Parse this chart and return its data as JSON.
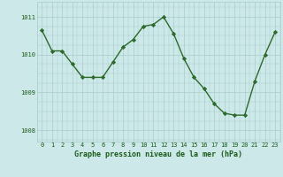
{
  "x": [
    0,
    1,
    2,
    3,
    4,
    5,
    6,
    7,
    8,
    9,
    10,
    11,
    12,
    13,
    14,
    15,
    16,
    17,
    18,
    19,
    20,
    21,
    22,
    23
  ],
  "y": [
    1010.65,
    1010.1,
    1010.1,
    1009.75,
    1009.4,
    1009.4,
    1009.4,
    1009.8,
    1010.2,
    1010.4,
    1010.75,
    1010.8,
    1011.0,
    1010.55,
    1009.9,
    1009.4,
    1009.1,
    1008.7,
    1008.45,
    1008.4,
    1008.4,
    1009.3,
    1010.0,
    1010.6
  ],
  "line_color": "#2d6a2d",
  "marker": "D",
  "marker_size": 2.2,
  "bg_color": "#cce8e8",
  "grid_color": "#aacccc",
  "xlabel": "Graphe pression niveau de la mer (hPa)",
  "xlabel_fontsize": 6.0,
  "xlabel_color": "#1a5c1a",
  "tick_color": "#1a5c1a",
  "tick_fontsize": 5.0,
  "ylim": [
    1007.7,
    1011.4
  ],
  "yticks": [
    1008,
    1009,
    1010,
    1011
  ],
  "xticks": [
    0,
    1,
    2,
    3,
    4,
    5,
    6,
    7,
    8,
    9,
    10,
    11,
    12,
    13,
    14,
    15,
    16,
    17,
    18,
    19,
    20,
    21,
    22,
    23
  ],
  "line_width": 1.0
}
